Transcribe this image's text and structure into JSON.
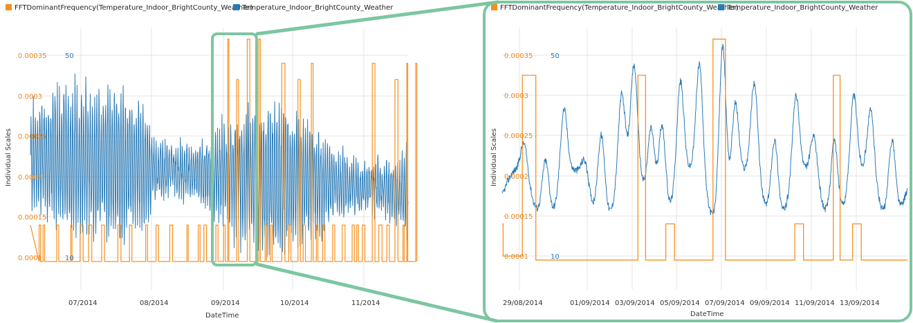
{
  "colors": {
    "fft": "#f5901f",
    "temp": "#2a7ab5",
    "zoom_frame": "#7cc6a0",
    "grid": "#e6e6e6"
  },
  "chart_data": [
    {
      "type": "line",
      "legend": [
        "FFTDominantFrequency(Temperature_Indoor_BrightCounty_Weather)",
        "Temperature_Indoor_BrightCounty_Weather"
      ],
      "xlabel": "DateTime",
      "ylabel": "Individual Scales",
      "x_ticks": [
        "07/2014",
        "08/2014",
        "09/2014",
        "10/2014",
        "11/2014"
      ],
      "y_left_ticks": [
        "0.0001",
        "0.00015",
        "0.0002",
        "0.00025",
        "0.0003",
        "0.00035"
      ],
      "y_right_ticks": [
        "10",
        "50"
      ],
      "grid": true,
      "legend_position": "top-left",
      "series": [
        {
          "name": "FFTDominantFrequency(Temperature_Indoor_BrightCounty_Weather)",
          "axis": "left",
          "steps": [
            [
              0.1,
              0.000325
            ],
            [
              0.8,
              0.0001
            ],
            [
              1.3,
              0.00014
            ],
            [
              1.9,
              0.0001
            ]
          ]
        },
        {
          "name": "Temperature_Indoor_BrightCounty_Weather",
          "axis": "right"
        }
      ]
    },
    {
      "type": "line",
      "legend": [
        "FFTDominantFrequency(Temperature_Indoor_BrightCounty_Weather)",
        "Temperature_Indoor_BrightCounty_Weather"
      ],
      "xlabel": "DateTime",
      "ylabel": "Individual Scales",
      "x_ticks": [
        "29/08/2014",
        "01/09/2014",
        "03/09/2014",
        "05/09/2014",
        "07/09/2014",
        "09/09/2014",
        "11/09/2014",
        "13/09/2014"
      ],
      "y_left_ticks": [
        "0.0001",
        "0.00015",
        "0.0002",
        "0.00025",
        "0.0003",
        "0.00035"
      ],
      "y_right_ticks": [
        "10",
        "50"
      ],
      "grid": true,
      "legend_position": "top-left",
      "series": [
        {
          "name": "FFTDominantFrequency(Temperature_Indoor_BrightCounty_Weather)",
          "axis": "left",
          "x_unit": "days since 28/08/2014",
          "steps": [
            [
              0.0,
              0.00014
            ],
            [
              0.05,
              0.0001
            ],
            [
              0.95,
              0.0001
            ],
            [
              1.05,
              0.000325
            ],
            [
              1.6,
              0.000325
            ],
            [
              1.75,
              9.5e-05
            ],
            [
              6.95,
              9.5e-05
            ],
            [
              7.05,
              0.000325
            ],
            [
              7.35,
              0.000325
            ],
            [
              7.45,
              9.5e-05
            ],
            [
              8.4,
              9.5e-05
            ],
            [
              8.5,
              0.00014
            ],
            [
              8.85,
              0.00014
            ],
            [
              8.95,
              9.5e-05
            ],
            [
              10.85,
              9.5e-05
            ],
            [
              10.95,
              0.00037
            ],
            [
              11.5,
              0.00037
            ],
            [
              11.6,
              9.5e-05
            ],
            [
              15.1,
              9.5e-05
            ],
            [
              15.2,
              0.00014
            ],
            [
              15.55,
              0.00014
            ],
            [
              15.65,
              9.5e-05
            ],
            [
              17.1,
              9.5e-05
            ],
            [
              17.2,
              0.000325
            ],
            [
              17.45,
              0.000325
            ],
            [
              17.55,
              9.5e-05
            ],
            [
              18.1,
              9.5e-05
            ],
            [
              18.2,
              0.00014
            ],
            [
              18.55,
              0.00014
            ],
            [
              18.65,
              9.5e-05
            ],
            [
              21.05,
              9.5e-05
            ]
          ]
        },
        {
          "name": "Temperature_Indoor_BrightCounty_Weather",
          "axis": "right",
          "x_unit": "days since 28/08/2014",
          "daily_peaks": [
            [
              1.15,
              29
            ],
            [
              2.25,
              34
            ],
            [
              3.2,
              37
            ],
            [
              4.3,
              27
            ],
            [
              5.15,
              39
            ],
            [
              6.2,
              40
            ],
            [
              6.85,
              43
            ],
            [
              7.75,
              38
            ],
            [
              8.3,
              41
            ],
            [
              9.25,
              42
            ],
            [
              10.25,
              46
            ],
            [
              11.45,
              56
            ],
            [
              12.1,
              39
            ],
            [
              13.1,
              41
            ],
            [
              14.15,
              38
            ],
            [
              15.25,
              39
            ],
            [
              16.2,
              31
            ],
            [
              17.25,
              38
            ],
            [
              18.25,
              39
            ],
            [
              19.15,
              36
            ],
            [
              20.25,
              38
            ]
          ],
          "base": 22
        }
      ]
    }
  ]
}
